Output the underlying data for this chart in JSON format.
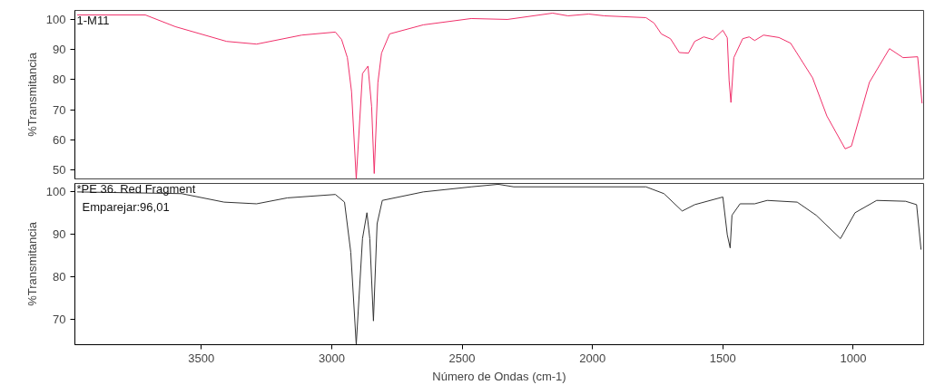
{
  "chart_data": [
    {
      "type": "line",
      "ylabel": "%Transmitancia",
      "annotations": [
        "1-M11"
      ],
      "xlim": [
        3985,
        730
      ],
      "ylim": [
        47,
        103
      ],
      "yticks": [
        50,
        60,
        70,
        80,
        90,
        100
      ],
      "tick_labels": "y",
      "series": [
        {
          "color": "#f0306a",
          "x": [
            3976,
            3715,
            3600,
            3403,
            3288,
            3115,
            2986,
            2962,
            2940,
            2924,
            2906,
            2882,
            2861,
            2847,
            2837,
            2823,
            2809,
            2778,
            2649,
            2465,
            2326,
            2153,
            2094,
            2014,
            1955,
            1795,
            1764,
            1736,
            1701,
            1667,
            1632,
            1608,
            1573,
            1538,
            1500,
            1483,
            1476,
            1469,
            1458,
            1424,
            1399,
            1378,
            1344,
            1285,
            1240,
            1156,
            1101,
            1031,
            1007,
            938,
            861,
            809,
            753,
            736
          ],
          "values": [
            101.5,
            101.5,
            97.6,
            92.7,
            91.8,
            94.8,
            95.8,
            93.3,
            87.3,
            76,
            47,
            82,
            84.5,
            71,
            48.8,
            79,
            88.8,
            95.2,
            98.2,
            100.3,
            100,
            102.1,
            101.2,
            101.8,
            101.2,
            100.6,
            98.8,
            95.2,
            93.6,
            89,
            88.8,
            92.7,
            94.2,
            93.3,
            96.4,
            93.9,
            79.7,
            72.4,
            87.3,
            93.6,
            94.2,
            93,
            94.8,
            94,
            92.1,
            80.6,
            67.9,
            57,
            57.9,
            79.1,
            90.3,
            87.3,
            87.6,
            72.1
          ]
        }
      ]
    },
    {
      "type": "line",
      "xlabel": "Número de Ondas (cm-1)",
      "ylabel": "%Transmitancia",
      "annotations": [
        "*PE 36. Red Fragment",
        "Emparejar:96,01"
      ],
      "xlim": [
        3985,
        730
      ],
      "ylim": [
        64,
        102
      ],
      "xticks": [
        3500,
        3000,
        2500,
        2000,
        1500,
        1000
      ],
      "yticks": [
        70,
        80,
        90,
        100
      ],
      "series": [
        {
          "color": "#333333",
          "x": [
            3976,
            3576,
            3413,
            3288,
            3170,
            2986,
            2951,
            2927,
            2906,
            2882,
            2865,
            2854,
            2840,
            2826,
            2806,
            2649,
            2465,
            2361,
            2302,
            1795,
            1726,
            1656,
            1608,
            1500,
            1483,
            1472,
            1465,
            1434,
            1378,
            1330,
            1215,
            1142,
            1049,
            993,
            910,
            799,
            757,
            740
          ],
          "values": [
            100,
            99.6,
            97.6,
            97.2,
            98.6,
            99.4,
            97.6,
            85.8,
            64,
            89,
            95.1,
            89,
            69.6,
            92.5,
            98,
            100,
            101.2,
            101.8,
            101.2,
            101.2,
            99.6,
            95.5,
            97,
            98.8,
            89.9,
            86.8,
            94.5,
            97.2,
            97.2,
            98,
            97.6,
            94.5,
            89,
            95.1,
            98,
            97.8,
            97,
            86.4
          ]
        }
      ]
    }
  ]
}
